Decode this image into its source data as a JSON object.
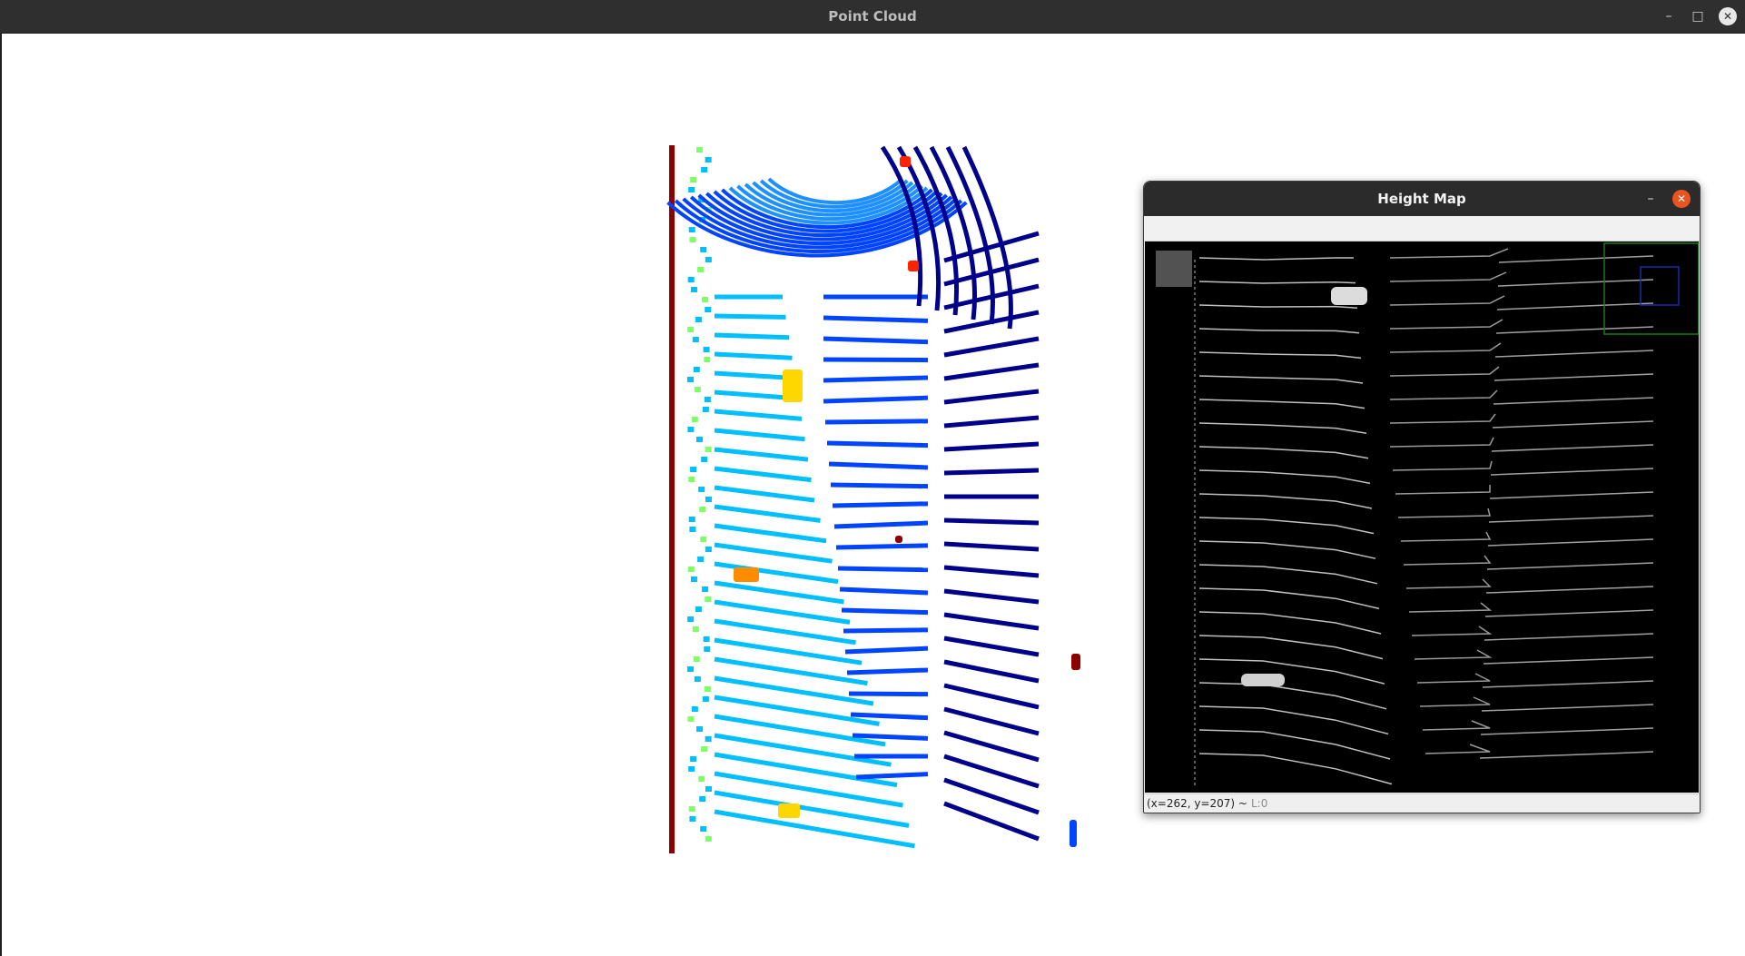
{
  "main_window": {
    "title": "Point Cloud",
    "controls": {
      "minimize": "–",
      "maximize": "□",
      "close": "✕"
    },
    "icons": [
      "minimize-icon",
      "maximize-icon",
      "close-icon"
    ]
  },
  "point_cloud_view": {
    "background": "#ffffff",
    "colormap": [
      "#00008b",
      "#0044ff",
      "#1e90ff",
      "#00bfff",
      "#7fff66",
      "#ffd700",
      "#ff8c00",
      "#ff2200",
      "#8b0000"
    ]
  },
  "height_map": {
    "title": "Height Map",
    "controls": {
      "minimize": "–",
      "close": "✕"
    },
    "status_coords": "(x=262, y=207) ~",
    "status_level": "L:0",
    "accent_close": "#e95420",
    "background": "#000000"
  }
}
